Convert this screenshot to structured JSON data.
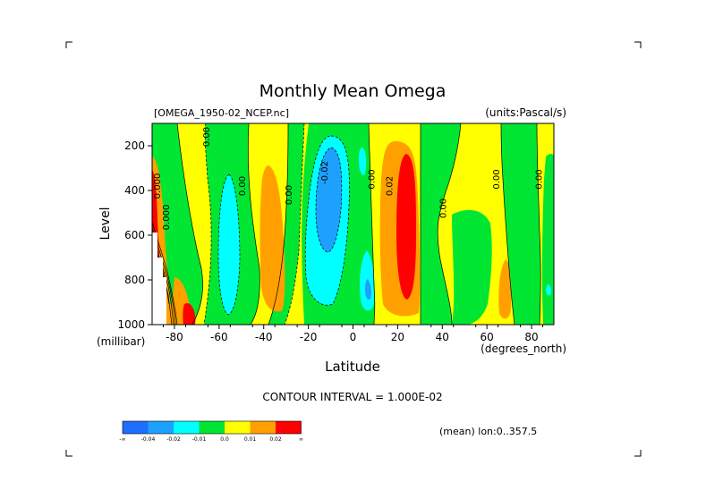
{
  "chart_data": {
    "type": "heatmap",
    "title": "Monthly Mean Omega",
    "file_label": "[OMEGA_1950-02_NCEP.nc]",
    "units_label": "(units:Pascal/s)",
    "xlabel": "Latitude",
    "x_unit_label": "(degrees_north)",
    "ylabel": "Level",
    "y_unit_label": "(millibar)",
    "xlim": [
      -90,
      90
    ],
    "ylim": [
      1000,
      100
    ],
    "x_ticks": [
      -80,
      -60,
      -40,
      -20,
      0,
      20,
      40,
      60,
      80
    ],
    "y_ticks": [
      200,
      400,
      600,
      800,
      1000
    ],
    "contour_interval": "CONTOUR INTERVAL = 1.000E-02",
    "mean_label": "(mean) lon:0..357.5",
    "colorbar": {
      "colors": [
        "#1e6eff",
        "#1ea0ff",
        "#00ffff",
        "#00e632",
        "#ffff00",
        "#ffa000",
        "#ff0000"
      ],
      "labels": [
        "-∞",
        "-0.04",
        "-0.02",
        "-0.01",
        "0.0",
        "0.01",
        "0.02",
        "∞"
      ]
    },
    "contour_labels": [
      {
        "text": "0.00",
        "x": -66,
        "y": 160,
        "rot": -90
      },
      {
        "text": "0.00",
        "x": -50,
        "y": 380,
        "rot": -90
      },
      {
        "text": "0.00",
        "x": -29,
        "y": 420,
        "rot": -90
      },
      {
        "text": "-0.02",
        "x": -13,
        "y": 320,
        "rot": -90
      },
      {
        "text": "0.00",
        "x": 8,
        "y": 350,
        "rot": -90
      },
      {
        "text": "0.02",
        "x": 16,
        "y": 380,
        "rot": -90
      },
      {
        "text": "0.00",
        "x": 40,
        "y": 480,
        "rot": -90
      },
      {
        "text": "0.00",
        "x": 64,
        "y": 350,
        "rot": -90
      },
      {
        "text": "0.00",
        "x": 83,
        "y": 350,
        "rot": -90
      },
      {
        "text": "0.000",
        "x": -88,
        "y": 380,
        "rot": -90
      },
      {
        "text": "0.000",
        "x": -84,
        "y": 520,
        "rot": -90
      }
    ]
  }
}
